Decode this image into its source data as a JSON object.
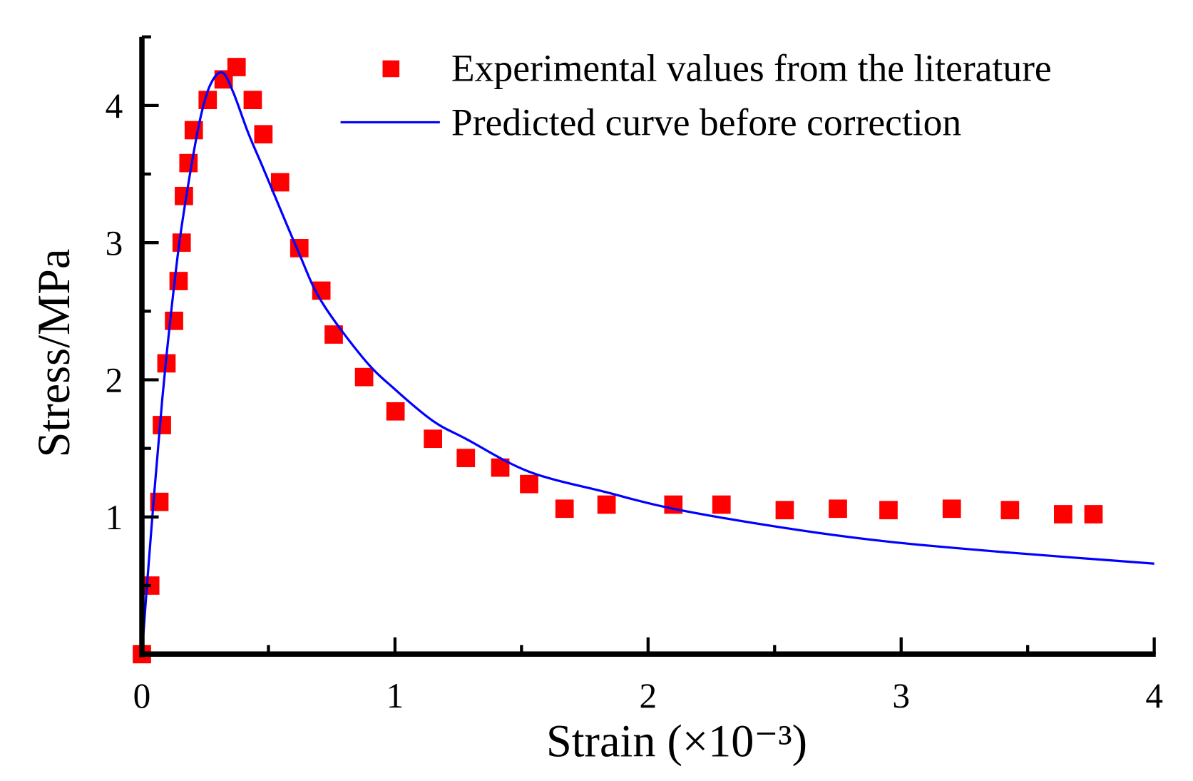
{
  "chart_data": {
    "type": "scatter",
    "title": "",
    "xlabel": "Strain (×10⁻³)",
    "ylabel": "Stress/MPa",
    "xlim": [
      0,
      4
    ],
    "ylim": [
      0,
      4.5
    ],
    "x_ticks": [
      0,
      1,
      2,
      3,
      4
    ],
    "x_tick_labels": [
      "0",
      "1",
      "2",
      "3",
      "4"
    ],
    "y_ticks": [
      1,
      2,
      3,
      4
    ],
    "y_tick_labels": [
      "1",
      "2",
      "3",
      "4"
    ],
    "grid": false,
    "legend_position": "top-right",
    "series": [
      {
        "name": "Experimental values from the literature",
        "type": "scatter",
        "marker": "square",
        "color": "#ff0000",
        "x": [
          0,
          0.033,
          0.069,
          0.079,
          0.097,
          0.127,
          0.145,
          0.157,
          0.166,
          0.184,
          0.205,
          0.26,
          0.323,
          0.374,
          0.438,
          0.48,
          0.546,
          0.622,
          0.709,
          0.758,
          0.878,
          1.002,
          1.15,
          1.28,
          1.416,
          1.53,
          1.67,
          1.836,
          2.1,
          2.29,
          2.54,
          2.75,
          2.95,
          3.2,
          3.43,
          3.64,
          3.76
        ],
        "y": [
          0,
          0.5,
          1.11,
          1.67,
          2.12,
          2.43,
          2.72,
          3.0,
          3.34,
          3.58,
          3.82,
          4.04,
          4.19,
          4.28,
          4.04,
          3.79,
          3.44,
          2.96,
          2.65,
          2.33,
          2.02,
          1.77,
          1.57,
          1.43,
          1.36,
          1.24,
          1.06,
          1.09,
          1.09,
          1.09,
          1.05,
          1.06,
          1.05,
          1.06,
          1.05,
          1.02,
          1.02
        ]
      },
      {
        "name": "Predicted curve before correction",
        "type": "line",
        "color": "#0000ff",
        "x": [
          0,
          0.02,
          0.05,
          0.08,
          0.11,
          0.148,
          0.19,
          0.23,
          0.27,
          0.317,
          0.36,
          0.42,
          0.48,
          0.619,
          0.71,
          0.878,
          1.0,
          1.15,
          1.28,
          1.53,
          1.836,
          2.1,
          2.54,
          2.95,
          3.43,
          4.0
        ],
        "y": [
          0,
          0.5,
          1.2,
          1.85,
          2.4,
          3.0,
          3.5,
          3.9,
          4.15,
          4.24,
          4.1,
          3.8,
          3.54,
          2.93,
          2.57,
          2.15,
          1.93,
          1.7,
          1.57,
          1.33,
          1.18,
          1.06,
          0.92,
          0.82,
          0.74,
          0.66
        ]
      }
    ]
  }
}
